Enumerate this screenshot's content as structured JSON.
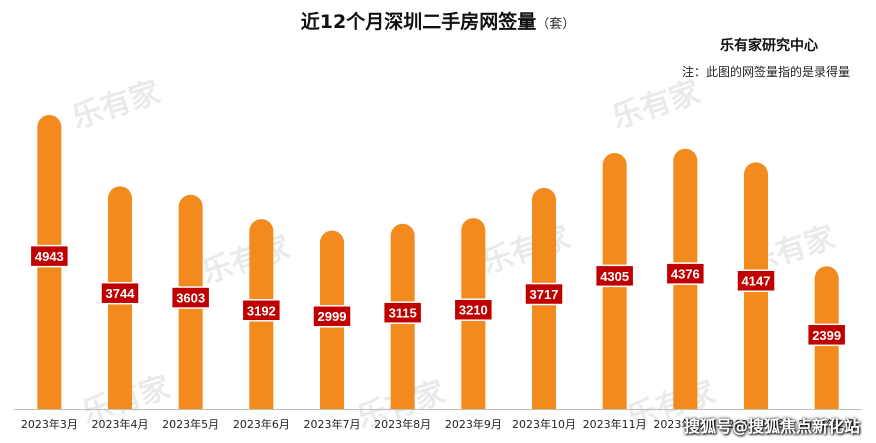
{
  "title": "近12个月深圳二手房网签量",
  "unit": "（套）",
  "source": "乐有家研究中心",
  "note": "注：此图的网签量指的是录得量",
  "watermark": "乐有家",
  "footer_watermark": "搜狐号@搜狐焦点新化站",
  "colors": {
    "bar": "#F28A1E",
    "label_bg": "#C00000",
    "label_text": "#ffffff",
    "axis": "#bfbfbf"
  },
  "chart_data": {
    "type": "bar",
    "categories": [
      "2023年3月",
      "2023年4月",
      "2023年5月",
      "2023年6月",
      "2023年7月",
      "2023年8月",
      "2023年9月",
      "2023年10月",
      "2023年11月",
      "2023年12月",
      "2024年1月",
      "2024年2月"
    ],
    "values": [
      4943,
      3744,
      3603,
      3192,
      2999,
      3115,
      3210,
      3717,
      4305,
      4376,
      4147,
      2399
    ],
    "title": "近12个月深圳二手房网签量",
    "xlabel": "",
    "ylabel": "",
    "ylim": [
      0,
      5200
    ],
    "grid": false
  }
}
